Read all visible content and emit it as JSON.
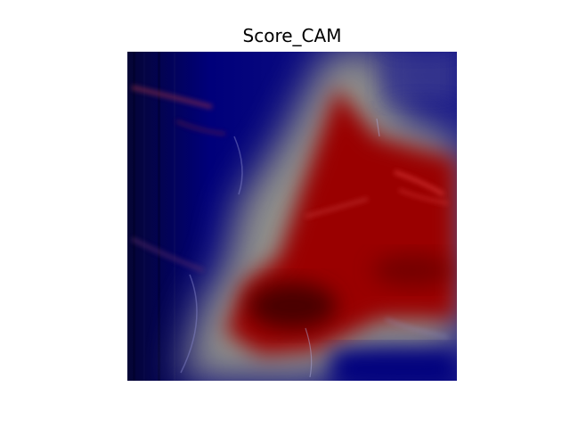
{
  "figure": {
    "title": "Score_CAM",
    "colormap": "seismic",
    "colors": {
      "low": "#00008b",
      "mid": "#9e9e90",
      "high": "#8b0000",
      "background": "#ffffff"
    }
  }
}
